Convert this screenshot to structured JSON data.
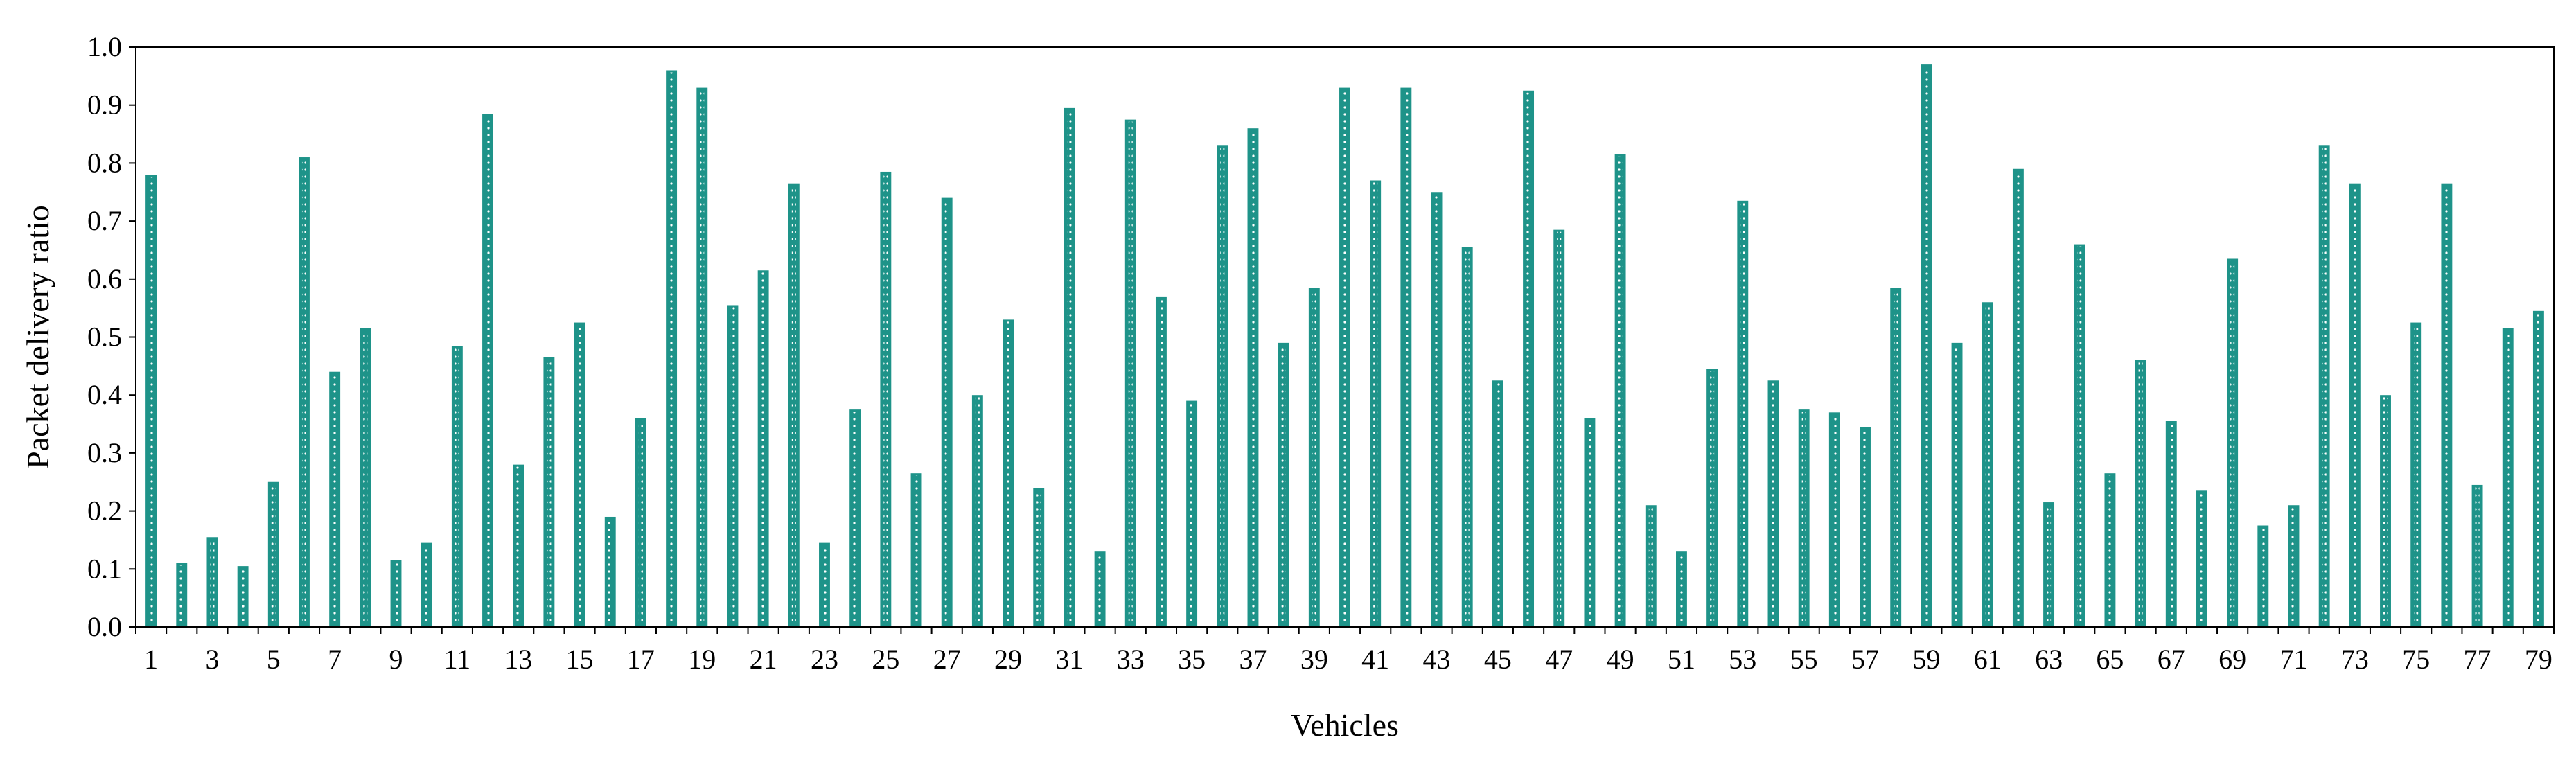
{
  "chart_data": {
    "type": "bar",
    "xlabel": "Vehicles",
    "ylabel": "Packet delivery ratio",
    "ylim": [
      0,
      1.0
    ],
    "ytick_step": 0.1,
    "yticks": [
      "0.0",
      "0.1",
      "0.2",
      "0.3",
      "0.4",
      "0.5",
      "0.6",
      "0.7",
      "0.8",
      "0.9",
      "1.0"
    ],
    "categories": [
      1,
      2,
      3,
      4,
      5,
      6,
      7,
      8,
      9,
      10,
      11,
      12,
      13,
      14,
      15,
      16,
      17,
      18,
      19,
      20,
      21,
      22,
      23,
      24,
      25,
      26,
      27,
      28,
      29,
      30,
      31,
      32,
      33,
      34,
      35,
      36,
      37,
      38,
      39,
      40,
      41,
      42,
      43,
      44,
      45,
      46,
      47,
      48,
      49,
      50,
      51,
      52,
      53,
      54,
      55,
      56,
      57,
      58,
      59,
      60,
      61,
      62,
      63,
      64,
      65,
      66,
      67,
      68,
      69,
      70,
      71,
      72,
      73,
      74,
      75,
      76,
      77,
      78,
      79
    ],
    "xtick_labels_shown": [
      "1",
      "3",
      "5",
      "7",
      "9",
      "11",
      "13",
      "15",
      "17",
      "19",
      "21",
      "23",
      "25",
      "27",
      "29",
      "31",
      "33",
      "35",
      "37",
      "39",
      "41",
      "43",
      "45",
      "47",
      "49",
      "51",
      "53",
      "55",
      "57",
      "59",
      "61",
      "63",
      "65",
      "67",
      "69",
      "71",
      "73",
      "75",
      "77",
      "79"
    ],
    "values": [
      0.78,
      0.11,
      0.155,
      0.105,
      0.25,
      0.81,
      0.44,
      0.515,
      0.115,
      0.145,
      0.485,
      0.885,
      0.28,
      0.465,
      0.525,
      0.19,
      0.36,
      0.96,
      0.93,
      0.555,
      0.615,
      0.765,
      0.145,
      0.375,
      0.785,
      0.265,
      0.74,
      0.4,
      0.53,
      0.24,
      0.895,
      0.13,
      0.875,
      0.57,
      0.39,
      0.83,
      0.86,
      0.49,
      0.585,
      0.93,
      0.77,
      0.93,
      0.75,
      0.655,
      0.425,
      0.925,
      0.685,
      0.36,
      0.815,
      0.21,
      0.13,
      0.445,
      0.735,
      0.425,
      0.375,
      0.37,
      0.345,
      0.585,
      0.97,
      0.49,
      0.56,
      0.79,
      0.215,
      0.66,
      0.265,
      0.46,
      0.355,
      0.235,
      0.635,
      0.175,
      0.21,
      0.83,
      0.765,
      0.4,
      0.525,
      0.765,
      0.245,
      0.515,
      0.545
    ],
    "bar_color": "#1e9389",
    "bar_pattern_color": "#ffffff",
    "grid": false,
    "legend": "none"
  }
}
